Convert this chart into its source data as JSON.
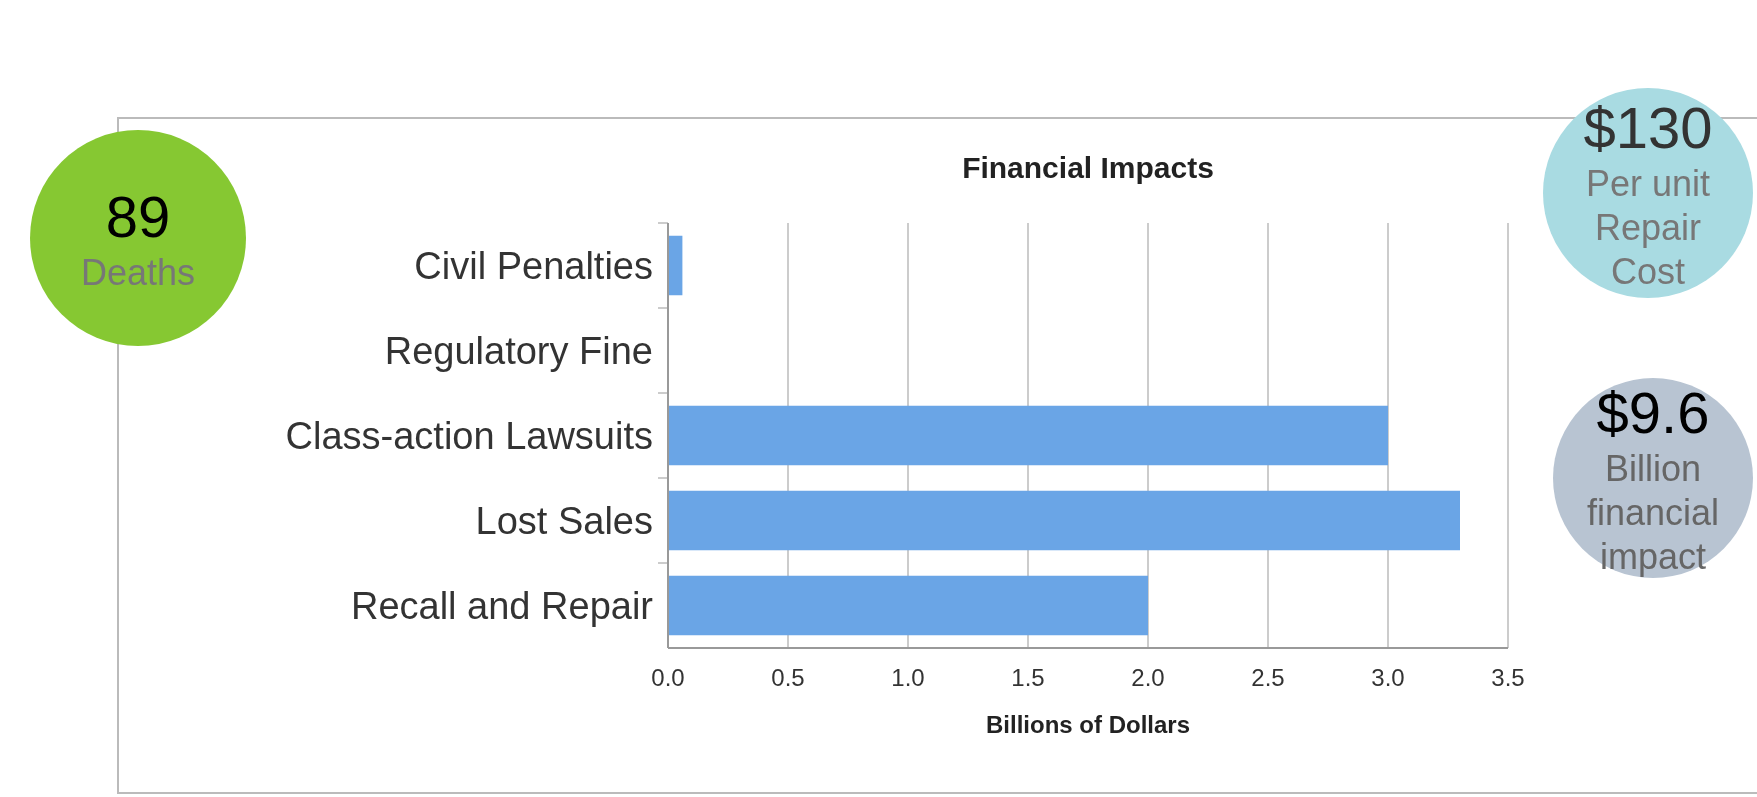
{
  "chart_data": {
    "type": "bar",
    "orientation": "horizontal",
    "title": "Financial Impacts",
    "xlabel": "Billions of Dollars",
    "categories": [
      "Civil Penalties",
      "Regulatory Fine",
      "Class-action Lawsuits",
      "Lost Sales",
      "Recall and Repair"
    ],
    "values": [
      0.06,
      null,
      3.0,
      3.3,
      2.0
    ],
    "color": "#6aa5e6",
    "xlim": [
      0,
      3.5
    ],
    "xticks": [
      {
        "value": 0,
        "label": "0.0"
      },
      {
        "value": 0.5,
        "label": "0.5"
      },
      {
        "value": 1,
        "label": "1.0"
      },
      {
        "value": 1.5,
        "label": "1.5"
      },
      {
        "value": 2,
        "label": "2.0"
      },
      {
        "value": 2.5,
        "label": "2.5"
      },
      {
        "value": 3,
        "label": "3.0"
      },
      {
        "value": 3.5,
        "label": "3.5"
      }
    ],
    "grid": "x",
    "annotations": [
      "89",
      "Deaths",
      "$9.6",
      "Billion financial impact",
      "$130",
      "Per unit Repair Cost"
    ]
  }
}
